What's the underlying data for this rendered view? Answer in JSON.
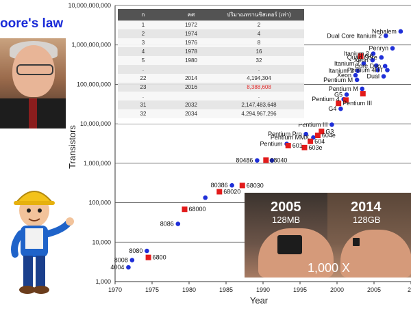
{
  "title": "oore's law",
  "table": {
    "headers": [
      "n",
      "คศ",
      "ปริมาณทรานซิสเตอร์ (เท่า)"
    ],
    "rows": [
      [
        "1",
        "1972",
        "2"
      ],
      [
        "2",
        "1974",
        "4"
      ],
      [
        "3",
        "1976",
        "8"
      ],
      [
        "4",
        "1978",
        "16"
      ],
      [
        "5",
        "1980",
        "32"
      ],
      [
        ".",
        "",
        "."
      ],
      [
        "22",
        "2014",
        "4,194,304"
      ],
      [
        "23",
        "2016",
        "8,388,608"
      ],
      [
        ".",
        "",
        "."
      ],
      [
        "31",
        "2032",
        "2,147,483,648"
      ],
      [
        "32",
        "2034",
        "4,294,967,296"
      ]
    ],
    "highlight_row": 7
  },
  "photo": {
    "year_left": "2005",
    "capacity_left": "128MB",
    "year_right": "2014",
    "capacity_right": "128GB",
    "factor": "1,000 X"
  },
  "colors": {
    "title": "#1a2bd8",
    "intel": "#1f2fd8",
    "motorola": "#e21b1b"
  },
  "chart_data": {
    "type": "scatter",
    "xlabel": "Year",
    "ylabel": "Transistors",
    "x_ticks": [
      "1970",
      "1975",
      "1980",
      "1985",
      "1990",
      "1995",
      "2000",
      "2005",
      "20"
    ],
    "y_scale": "log",
    "y_ticks": [
      "1,000",
      "10,000",
      "100,000",
      "1,000,000",
      "10,000,000",
      "100,000,000",
      "1,000,000,000",
      "10,000,000,000"
    ],
    "xlim": [
      1970,
      2010
    ],
    "ylim": [
      1000,
      10000000000
    ],
    "grid": "horizontal",
    "series": [
      {
        "marker": "circle",
        "color": "#1f2fd8",
        "points": [
          {
            "x": 1971.8,
            "y": 2300,
            "label": "4004"
          },
          {
            "x": 1972.3,
            "y": 3500,
            "label": "8008"
          },
          {
            "x": 1974.3,
            "y": 6000,
            "label": "8080"
          },
          {
            "x": 1978.5,
            "y": 29000,
            "label": "8086"
          },
          {
            "x": 1982.2,
            "y": 134000,
            "label": ""
          },
          {
            "x": 1985.8,
            "y": 275000,
            "label": "80386"
          },
          {
            "x": 1989.2,
            "y": 1180000,
            "label": "80486"
          },
          {
            "x": 1991.2,
            "y": 1180000,
            "label": ""
          },
          {
            "x": 1993.2,
            "y": 3100000,
            "label": "Pentium"
          },
          {
            "x": 1995.8,
            "y": 5500000,
            "label": "Pentium Pro"
          },
          {
            "x": 1996.8,
            "y": 4500000,
            "label": "Pentium MMX"
          },
          {
            "x": 1999.3,
            "y": 9500000,
            "label": "Pentium III"
          },
          {
            "x": 2000.5,
            "y": 24000000,
            "label": "G4"
          },
          {
            "x": 2000.9,
            "y": 42000000,
            "label": "Pentium 4"
          },
          {
            "x": 2003.4,
            "y": 77000000,
            "label": "Pentium M"
          },
          {
            "x": 2002.5,
            "y": 170000000,
            "label": "Xeon"
          },
          {
            "x": 2002.8,
            "y": 220000000,
            "label": "Itanium 2"
          },
          {
            "x": 2003.6,
            "y": 340000000,
            "label": "Itanium 2"
          },
          {
            "x": 2004.8,
            "y": 410000000,
            "label": "Xeon"
          },
          {
            "x": 2005.3,
            "y": 300000000,
            "label": ""
          },
          {
            "x": 2005.5,
            "y": 230000000,
            "label": ""
          },
          {
            "x": 2006.5,
            "y": 290000000,
            "label": "Core Duo"
          },
          {
            "x": 2006.8,
            "y": 230000000,
            "label": "Pentium 4HT"
          },
          {
            "x": 2006.3,
            "y": 160000000,
            "label": "Dual"
          },
          {
            "x": 2006.0,
            "y": 480000000,
            "label": "Quad Core"
          },
          {
            "x": 2004.9,
            "y": 600000000,
            "label": "Itanium 2"
          },
          {
            "x": 2007.5,
            "y": 820000000,
            "label": "Penryn"
          },
          {
            "x": 2008.6,
            "y": 2200000000,
            "label": "Nehalem"
          },
          {
            "x": 2002.7,
            "y": 130000000,
            "label": "Pentium M"
          },
          {
            "x": 2001.3,
            "y": 55000000,
            "label": "G5"
          },
          {
            "x": 2006.6,
            "y": 1700000000,
            "label": "Dual Core Itanium 2"
          }
        ]
      },
      {
        "marker": "square",
        "color": "#e21b1b",
        "points": [
          {
            "x": 1974.5,
            "y": 4100,
            "label": "6800"
          },
          {
            "x": 1979.4,
            "y": 68000,
            "label": "68000"
          },
          {
            "x": 1984.1,
            "y": 190000,
            "label": "68020"
          },
          {
            "x": 1987.2,
            "y": 273000,
            "label": "68030"
          },
          {
            "x": 1990.4,
            "y": 1200000,
            "label": "68040"
          },
          {
            "x": 1993.4,
            "y": 2800000,
            "label": "601"
          },
          {
            "x": 1995.6,
            "y": 2500000,
            "label": "603e"
          },
          {
            "x": 1996.4,
            "y": 3600000,
            "label": "604"
          },
          {
            "x": 1997.4,
            "y": 5100000,
            "label": "604e"
          },
          {
            "x": 1997.9,
            "y": 6400000,
            "label": "G3"
          },
          {
            "x": 2000.2,
            "y": 33000000,
            "label": "Pentium III"
          },
          {
            "x": 2003.5,
            "y": 58000000,
            "label": ""
          },
          {
            "x": 2003.2,
            "y": 520000000,
            "label": "G6"
          },
          {
            "x": 2001.2,
            "y": 40000000,
            "label": ""
          }
        ]
      }
    ]
  }
}
